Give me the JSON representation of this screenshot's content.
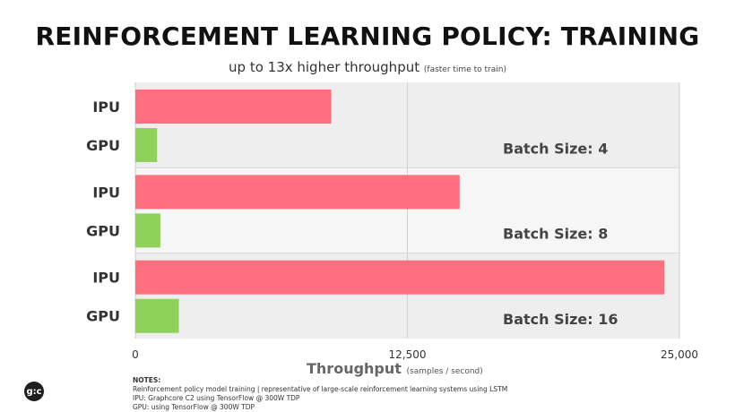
{
  "title": "REINFORCEMENT LEARNING POLICY: TRAINING",
  "subtitle": {
    "main": "up to 13x higher throughput",
    "note": "(faster time to train)"
  },
  "axis": {
    "title": "Throughput",
    "unit": "(samples / second)"
  },
  "notes": {
    "heading": "NOTES:",
    "lines": [
      "Reinforcement policy model training | representative of large-scale reinforcement learning systems using LSTM",
      "IPU: Graphcore C2 using TensorFlow @ 300W TDP",
      "GPU: using TensorFlow @ 300W TDP"
    ]
  },
  "logo": {
    "icon": "graphcore-logo-icon",
    "text": "g:c"
  },
  "chart_data": {
    "type": "bar",
    "orientation": "horizontal",
    "xlim": [
      0,
      25000
    ],
    "ticks": [
      "0",
      "12,500",
      "25,000"
    ],
    "tick_values": [
      0,
      12500,
      25000
    ],
    "grid": true,
    "groups": [
      {
        "label": "Batch Size: 4",
        "bars": [
          {
            "category": "IPU",
            "value": 9000
          },
          {
            "category": "GPU",
            "value": 1000
          }
        ]
      },
      {
        "label": "Batch Size: 8",
        "bars": [
          {
            "category": "IPU",
            "value": 14900
          },
          {
            "category": "GPU",
            "value": 1150
          }
        ]
      },
      {
        "label": "Batch Size: 16",
        "bars": [
          {
            "category": "IPU",
            "value": 24300
          },
          {
            "category": "GPU",
            "value": 2000
          }
        ]
      }
    ],
    "colors": {
      "IPU": "#ff6f7d",
      "GPU": "#8fd25b",
      "band_a": "#eeeeee",
      "band_b": "#f6f6f6",
      "grid": "#cfcfcf"
    }
  }
}
